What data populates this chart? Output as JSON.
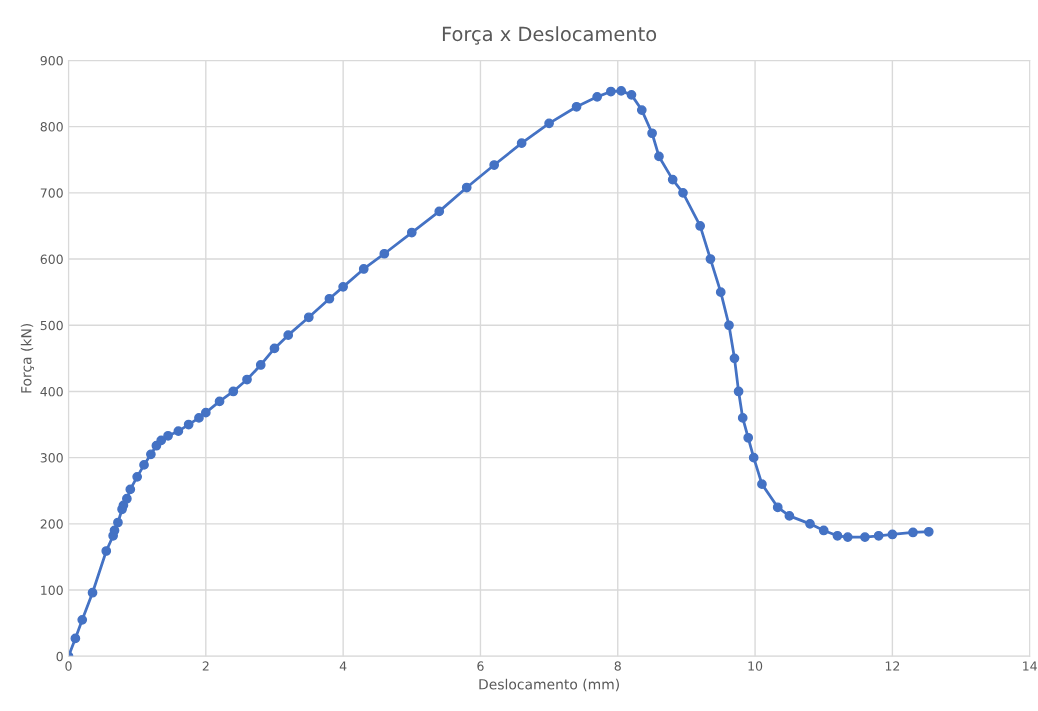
{
  "chart_data": {
    "type": "line",
    "title": "Força x Deslocamento",
    "xlabel": "Deslocamento (mm)",
    "ylabel": "Força (kN)",
    "xlim": [
      0,
      14
    ],
    "xticks": [
      0,
      2,
      4,
      6,
      8,
      10,
      12,
      14
    ],
    "ylim": [
      0,
      900
    ],
    "yticks": [
      0,
      100,
      200,
      300,
      400,
      500,
      600,
      700,
      800,
      900
    ],
    "grid": true,
    "marker": "circle",
    "line_style": "solid",
    "series": [
      {
        "color": "#4472c4",
        "x": [
          0,
          0.1,
          0.2,
          0.35,
          0.55,
          0.65,
          0.67,
          0.72,
          0.78,
          0.8,
          0.85,
          0.9,
          1.0,
          1.1,
          1.2,
          1.28,
          1.35,
          1.45,
          1.6,
          1.75,
          1.9,
          2.0,
          2.2,
          2.4,
          2.6,
          2.8,
          3.0,
          3.2,
          3.5,
          3.8,
          4.0,
          4.3,
          4.6,
          5.0,
          5.4,
          5.8,
          6.2,
          6.6,
          7.0,
          7.4,
          7.7,
          7.9,
          8.05,
          8.2,
          8.35,
          8.5,
          8.6,
          8.8,
          8.95,
          9.2,
          9.35,
          9.5,
          9.62,
          9.7,
          9.76,
          9.82,
          9.9,
          9.98,
          10.1,
          10.33,
          10.5,
          10.8,
          11.0,
          11.2,
          11.35,
          11.6,
          11.8,
          12.0,
          12.3,
          12.53
        ],
        "values": [
          0,
          27,
          55,
          96,
          159,
          182,
          190,
          202,
          222,
          228,
          238,
          252,
          271,
          289,
          305,
          318,
          326,
          333,
          340,
          350,
          360,
          368,
          385,
          400,
          418,
          440,
          465,
          485,
          512,
          540,
          558,
          585,
          608,
          640,
          672,
          708,
          742,
          775,
          805,
          830,
          845,
          853,
          854,
          848,
          825,
          790,
          755,
          720,
          700,
          650,
          600,
          550,
          500,
          450,
          400,
          360,
          330,
          300,
          260,
          225,
          212,
          200,
          190,
          182,
          180,
          180,
          182,
          184,
          187,
          188
        ]
      }
    ]
  }
}
